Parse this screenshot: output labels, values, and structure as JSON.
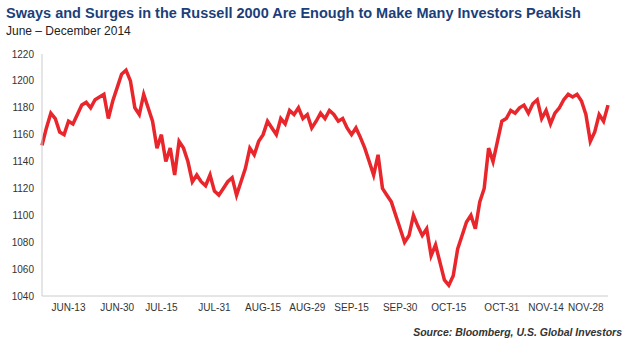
{
  "chart_data": {
    "type": "line",
    "title": "Sways and Surges in the Russell 2000 Are Enough to Make Many Investors Peakish",
    "subtitle": "June – December 2014",
    "source": "Source: Bloomberg, U.S. Global Investors",
    "categories": [
      null,
      null,
      null,
      null,
      null,
      null,
      "JUN-13",
      null,
      null,
      null,
      null,
      null,
      null,
      null,
      null,
      null,
      null,
      "JUN-30",
      null,
      null,
      null,
      null,
      null,
      null,
      null,
      null,
      null,
      "JUL-15",
      null,
      null,
      null,
      null,
      null,
      null,
      null,
      null,
      null,
      null,
      null,
      "JUL-31",
      null,
      null,
      null,
      null,
      null,
      null,
      null,
      null,
      null,
      null,
      "AUG-15",
      null,
      null,
      null,
      null,
      null,
      null,
      null,
      null,
      null,
      "AUG-29",
      null,
      null,
      null,
      null,
      null,
      null,
      null,
      null,
      null,
      "SEP-15",
      null,
      null,
      null,
      null,
      null,
      null,
      null,
      null,
      null,
      null,
      "SEP-30",
      null,
      null,
      null,
      null,
      null,
      null,
      null,
      null,
      null,
      null,
      "OCT-15",
      null,
      null,
      null,
      null,
      null,
      null,
      null,
      null,
      null,
      null,
      null,
      "OCT-31",
      null,
      null,
      null,
      null,
      null,
      null,
      null,
      null,
      null,
      "NOV-14",
      null,
      null,
      null,
      null,
      null,
      null,
      null,
      null,
      "NOV-28",
      null,
      null,
      null,
      null,
      null
    ],
    "values": [
      1152,
      1165,
      1176,
      1172,
      1162,
      1160,
      1170,
      1168,
      1175,
      1182,
      1184,
      1180,
      1186,
      1188,
      1190,
      1172,
      1185,
      1195,
      1205,
      1208,
      1200,
      1180,
      1175,
      1190,
      1180,
      1170,
      1150,
      1160,
      1140,
      1150,
      1130,
      1155,
      1150,
      1140,
      1125,
      1130,
      1125,
      1122,
      1130,
      1118,
      1115,
      1120,
      1125,
      1128,
      1115,
      1125,
      1135,
      1150,
      1145,
      1155,
      1160,
      1170,
      1165,
      1160,
      1172,
      1168,
      1178,
      1175,
      1180,
      1172,
      1175,
      1165,
      1170,
      1176,
      1172,
      1178,
      1175,
      1170,
      1172,
      1165,
      1160,
      1165,
      1158,
      1150,
      1140,
      1130,
      1145,
      1120,
      1115,
      1110,
      1100,
      1090,
      1080,
      1085,
      1100,
      1092,
      1085,
      1090,
      1070,
      1078,
      1065,
      1052,
      1048,
      1055,
      1075,
      1085,
      1095,
      1100,
      1090,
      1110,
      1120,
      1150,
      1140,
      1155,
      1170,
      1172,
      1178,
      1176,
      1180,
      1182,
      1176,
      1183,
      1186,
      1172,
      1178,
      1168,
      1176,
      1180,
      1186,
      1190,
      1188,
      1190,
      1185,
      1175,
      1155,
      1162,
      1175,
      1170,
      1182
    ],
    "color": "#e8262b",
    "ylim": [
      1040,
      1220
    ],
    "yticks": [
      1040,
      1060,
      1080,
      1100,
      1120,
      1140,
      1160,
      1180,
      1200,
      1220
    ],
    "grid": false
  }
}
